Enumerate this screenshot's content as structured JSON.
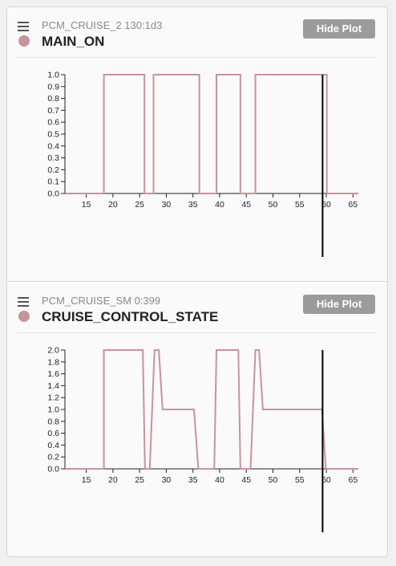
{
  "colors": {
    "signal": "#c9939b",
    "cursor": "#000000",
    "button": "#9b9b9b"
  },
  "panels": [
    {
      "subtitle": "PCM_CRUISE_2 130:1d3",
      "title": "MAIN_ON",
      "hide_button_label": "Hide Plot",
      "chart_data": {
        "type": "line",
        "x_ticks": [
          "15",
          "20",
          "25",
          "30",
          "35",
          "40",
          "45",
          "50",
          "55",
          "60",
          "65"
        ],
        "y_ticks": [
          "0.0",
          "0.1",
          "0.2",
          "0.3",
          "0.4",
          "0.5",
          "0.6",
          "0.7",
          "0.8",
          "0.9",
          "1.0"
        ],
        "xlim": [
          11,
          66
        ],
        "ylim": [
          0,
          1.0
        ],
        "cursor_x": 59.3,
        "x": [
          11,
          18.3,
          18.3,
          25.9,
          25.9,
          27.6,
          27.6,
          36.2,
          36.2,
          39.4,
          39.4,
          43.9,
          43.9,
          46.7,
          46.7,
          60.1,
          60.1,
          66
        ],
        "y": [
          0,
          0,
          1,
          1,
          0,
          0,
          1,
          1,
          0,
          0,
          1,
          1,
          0,
          0,
          1,
          1,
          0,
          0
        ]
      }
    },
    {
      "subtitle": "PCM_CRUISE_SM 0:399",
      "title": "CRUISE_CONTROL_STATE",
      "hide_button_label": "Hide Plot",
      "chart_data": {
        "type": "line",
        "x_ticks": [
          "15",
          "20",
          "25",
          "30",
          "35",
          "40",
          "45",
          "50",
          "55",
          "60",
          "65"
        ],
        "y_ticks": [
          "0.0",
          "0.2",
          "0.4",
          "0.6",
          "0.8",
          "1.0",
          "1.2",
          "1.4",
          "1.6",
          "1.8",
          "2.0"
        ],
        "xlim": [
          11,
          66
        ],
        "ylim": [
          0,
          2.0
        ],
        "cursor_x": 59.3,
        "x": [
          11,
          18.3,
          18.3,
          25.6,
          26.0,
          26.9,
          27.8,
          28.6,
          29.3,
          35.2,
          36.0,
          39.0,
          39.4,
          43.5,
          43.9,
          45.8,
          46.7,
          47.4,
          48.1,
          59.2,
          59.9,
          66
        ],
        "y": [
          0,
          0,
          2,
          2,
          0,
          0,
          2,
          2,
          1,
          1,
          0,
          0,
          2,
          2,
          0,
          0,
          2,
          2,
          1,
          1,
          0,
          0
        ]
      }
    }
  ]
}
